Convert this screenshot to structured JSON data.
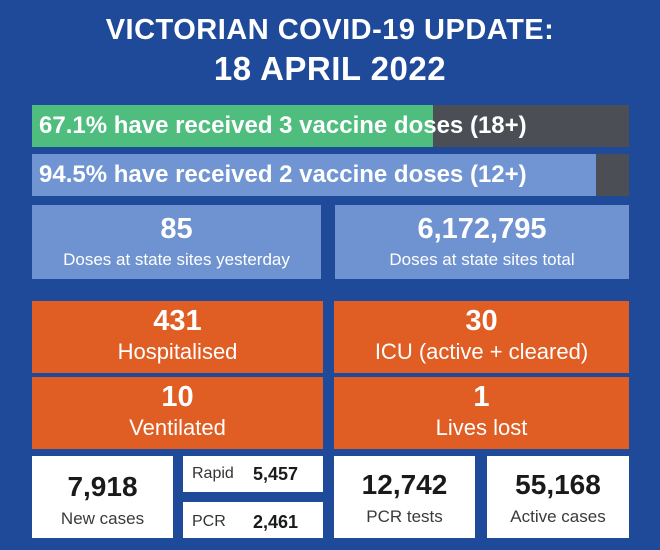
{
  "header": {
    "title": "VICTORIAN COVID-19 UPDATE:",
    "date": "18 APRIL 2022"
  },
  "vaccination": [
    {
      "text": "67.1% have received 3 vaccine doses (18+)",
      "percent": 67.1,
      "color": "#4ebd7e"
    },
    {
      "text": "94.5% have received 2 vaccine doses (12+)",
      "percent": 94.5,
      "color": "#7095d2"
    }
  ],
  "doses": {
    "yesterday": {
      "value": "85",
      "label": "Doses at state sites yesterday"
    },
    "total": {
      "value": "6,172,795",
      "label": "Doses at state sites total"
    }
  },
  "hospital": {
    "hospitalised": {
      "value": "431",
      "label": "Hospitalised"
    },
    "icu": {
      "value": "30",
      "label": "ICU (active + cleared)"
    },
    "ventilated": {
      "value": "10",
      "label": "Ventilated"
    },
    "lives_lost": {
      "value": "1",
      "label": "Lives lost"
    }
  },
  "cases": {
    "new_cases": {
      "value": "7,918",
      "label": "New cases"
    },
    "rapid": {
      "label": "Rapid",
      "value": "5,457"
    },
    "pcr": {
      "label": "PCR",
      "value": "2,461"
    },
    "pcr_tests": {
      "value": "12,742",
      "label": "PCR tests"
    },
    "active_cases": {
      "value": "55,168",
      "label": "Active cases"
    }
  },
  "colors": {
    "background": "#1f4a9a",
    "hospital_orange": "#e05d24",
    "dose_blue": "#6f93d0",
    "bar_remainder": "#4b4f55"
  }
}
